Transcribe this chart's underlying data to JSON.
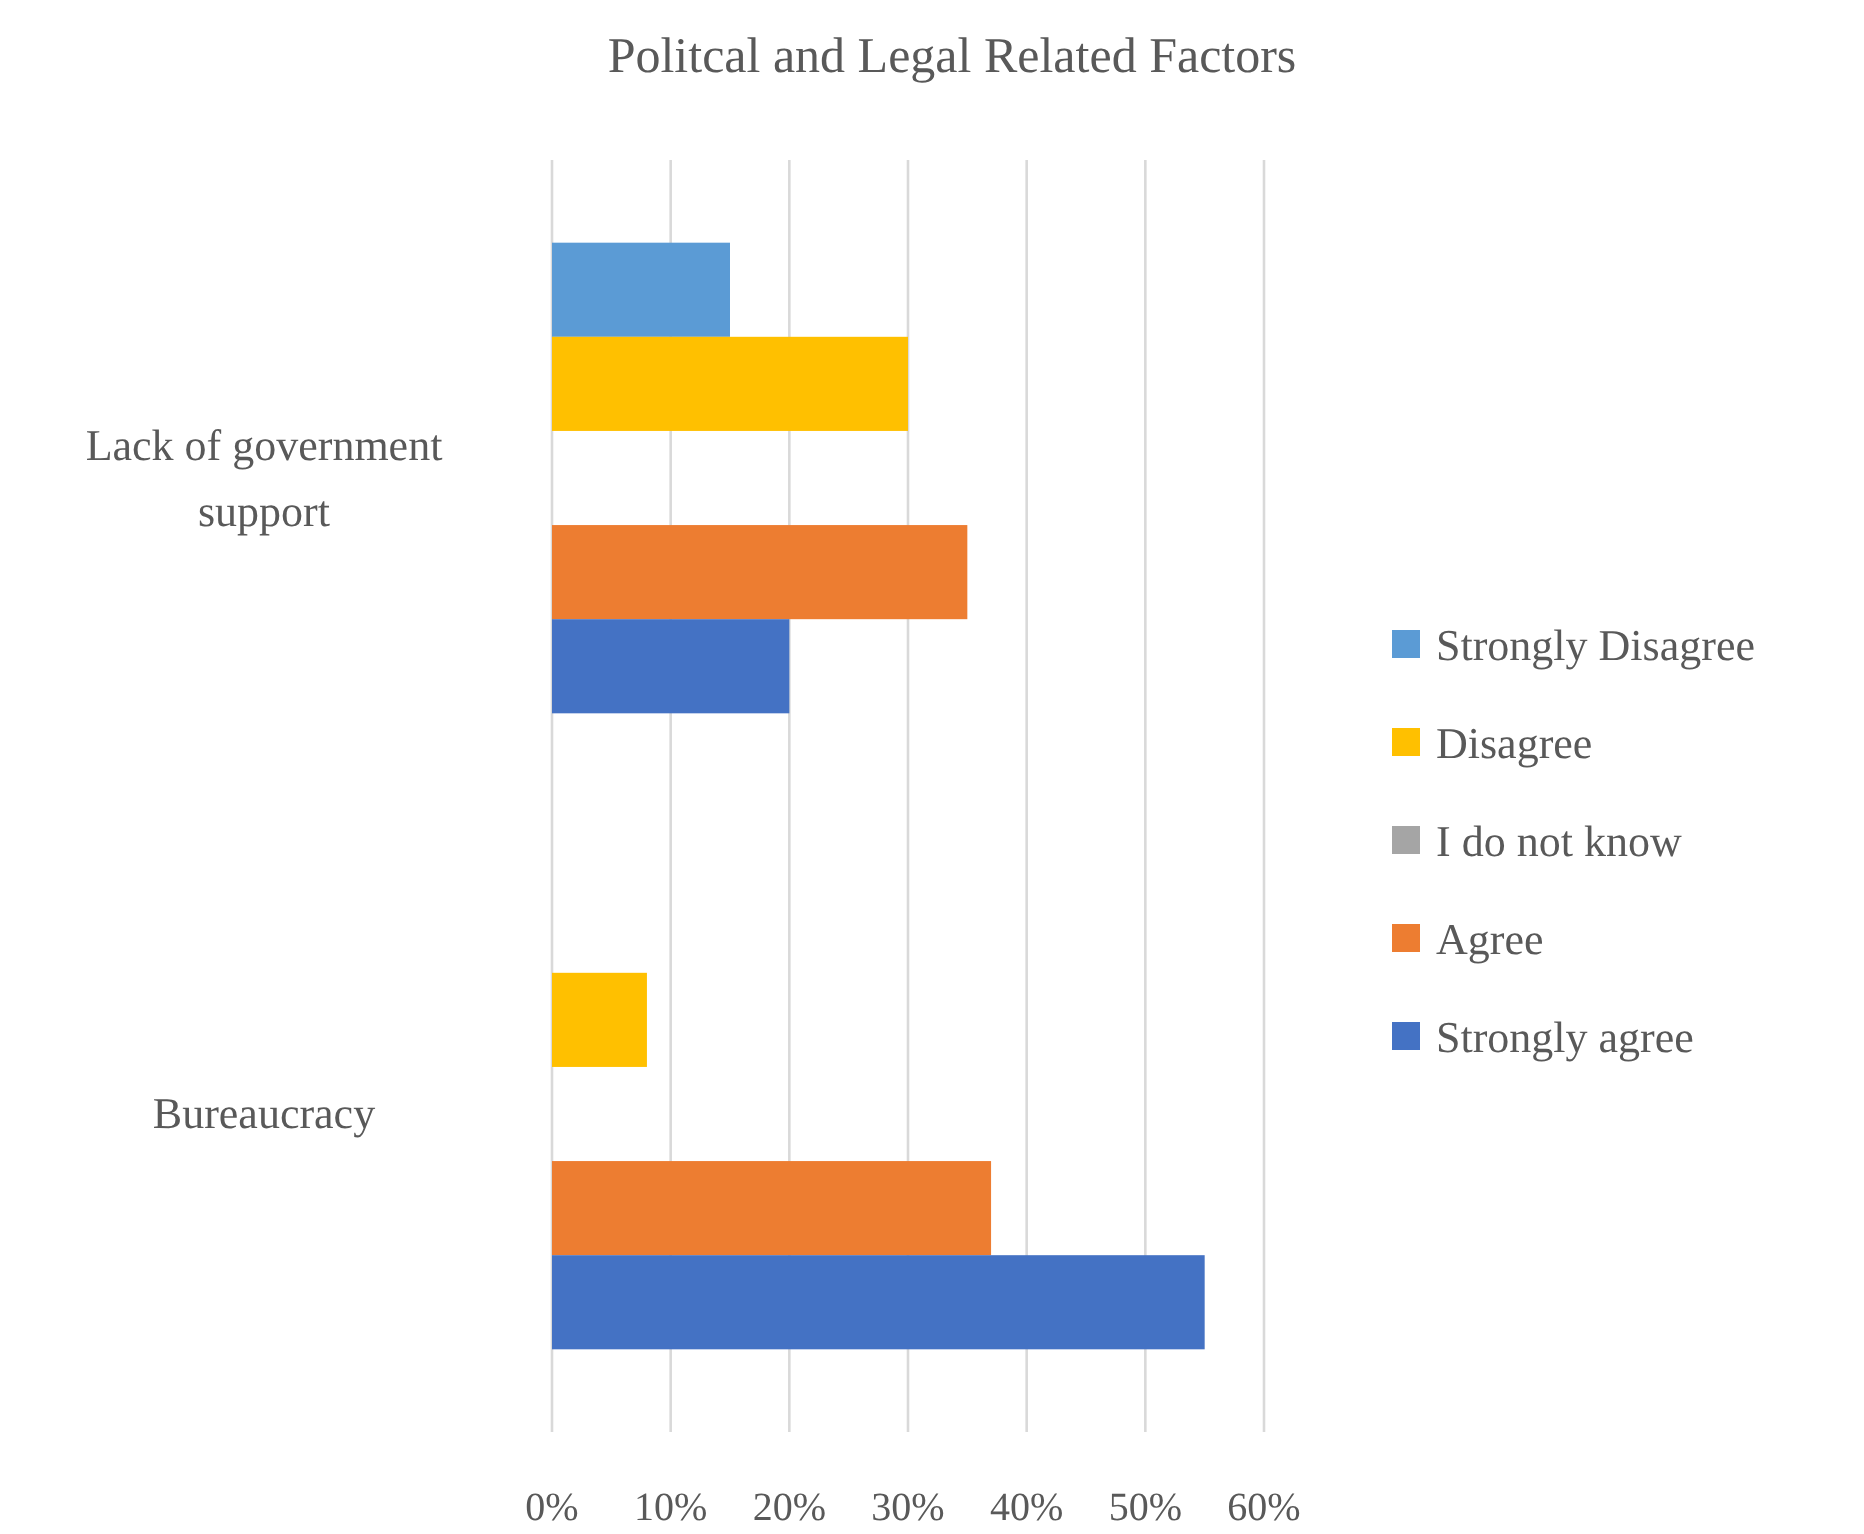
{
  "chart_data": {
    "type": "bar",
    "orientation": "horizontal",
    "title": "Politcal and Legal Related Factors",
    "categories": [
      "Lack of government support",
      "Bureaucracy"
    ],
    "series": [
      {
        "name": "Strongly Disagree",
        "color": "#5b9bd5",
        "values": [
          15,
          null
        ]
      },
      {
        "name": "Disagree",
        "color": "#ffc000",
        "values": [
          30,
          8
        ]
      },
      {
        "name": "I do not know",
        "color": "#a5a5a5",
        "values": [
          null,
          null
        ]
      },
      {
        "name": "Agree",
        "color": "#ed7d31",
        "values": [
          35,
          37
        ]
      },
      {
        "name": "Strongly agree",
        "color": "#4472c4",
        "values": [
          20,
          55
        ]
      }
    ],
    "xlim": [
      0,
      60
    ],
    "xticks": [
      {
        "value": 0,
        "label": "0%"
      },
      {
        "value": 10,
        "label": "10%"
      },
      {
        "value": 20,
        "label": "20%"
      },
      {
        "value": 30,
        "label": "30%"
      },
      {
        "value": 40,
        "label": "40%"
      },
      {
        "value": 50,
        "label": "50%"
      },
      {
        "value": 60,
        "label": "60%"
      }
    ],
    "grid": "x",
    "legend": "right"
  }
}
